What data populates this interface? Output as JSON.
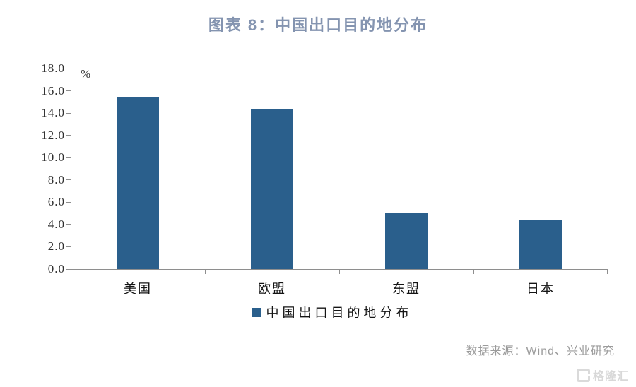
{
  "title": "图表 8：中国出口目的地分布",
  "chart_data": {
    "type": "bar",
    "title": "图表 8：中国出口目的地分布",
    "categories": [
      "美国",
      "欧盟",
      "东盟",
      "日本"
    ],
    "values": [
      15.4,
      14.4,
      5.0,
      4.4
    ],
    "series_name": "中国出口目的地分布",
    "unit_label": "%",
    "xlabel": "",
    "ylabel": "%",
    "ylim": [
      0,
      18
    ],
    "ytick_step": 2,
    "yticks": [
      "18.0",
      "16.0",
      "14.0",
      "12.0",
      "10.0",
      "8.0",
      "6.0",
      "4.0",
      "2.0",
      "0.0"
    ],
    "grid": false,
    "legend_position": "bottom",
    "legend": [
      "中国出口目的地分布"
    ],
    "bar_color": "#2a5f8c"
  },
  "legend": {
    "label": "中国出口目的地分布",
    "swatch_color": "#2a5f8c"
  },
  "source": {
    "text": "数据来源：Wind、兴业研究"
  },
  "watermark": {
    "icon_name": "gelonghui-g-icon",
    "text": "格隆汇"
  },
  "colors": {
    "bar": "#2a5f8c",
    "title": "#8494b0",
    "axis": "#8e8e8e",
    "tick_text": "#2f2f2f",
    "source_text": "#9b9b9b",
    "watermark": "#d8d8d8",
    "background": "#ffffff"
  }
}
